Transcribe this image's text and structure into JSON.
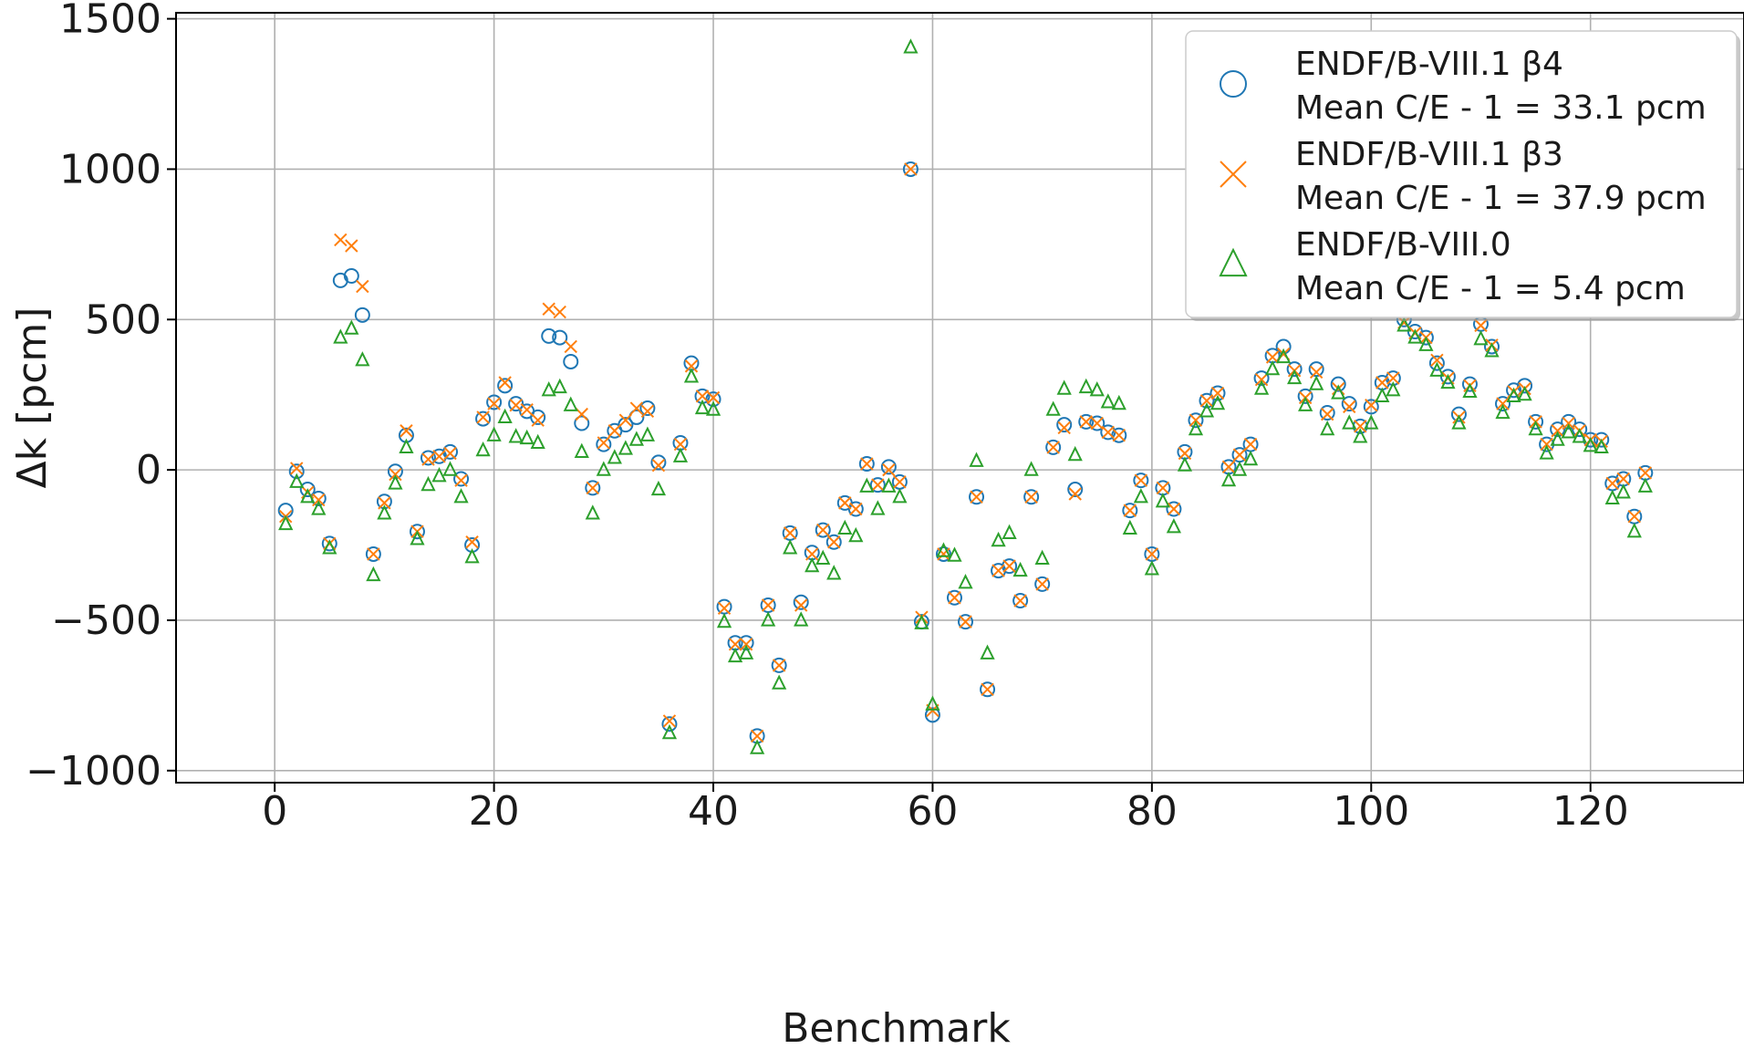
{
  "chart_data": {
    "type": "scatter",
    "title": "",
    "xlabel": "Benchmark",
    "ylabel": "Δk [pcm]",
    "xlim": [
      -9,
      134
    ],
    "ylim": [
      -1040,
      1520
    ],
    "xticks": [
      0,
      20,
      40,
      60,
      80,
      100,
      120
    ],
    "yticks": [
      -1000,
      -500,
      0,
      500,
      1000,
      1500
    ],
    "ytick_labels": [
      "−1000",
      "−500",
      "0",
      "500",
      "1000",
      "1500"
    ],
    "grid": true,
    "legend_position": "top-right",
    "series": [
      {
        "name_line1": "ENDF/B-VIII.1 β4",
        "name_line2": "Mean C/E - 1 = 33.1 pcm",
        "marker": "circle",
        "color": "#1f77b4",
        "x": [
          1,
          2,
          3,
          4,
          5,
          6,
          7,
          8,
          9,
          10,
          11,
          12,
          13,
          14,
          15,
          16,
          17,
          18,
          19,
          20,
          21,
          22,
          23,
          24,
          25,
          26,
          27,
          28,
          29,
          30,
          31,
          32,
          33,
          34,
          35,
          36,
          37,
          38,
          39,
          40,
          41,
          42,
          43,
          44,
          45,
          46,
          47,
          48,
          49,
          50,
          51,
          52,
          53,
          54,
          55,
          56,
          57,
          58,
          59,
          60,
          61,
          62,
          63,
          64,
          65,
          66,
          67,
          68,
          69,
          70,
          71,
          72,
          73,
          74,
          75,
          76,
          77,
          78,
          79,
          80,
          81,
          82,
          83,
          84,
          85,
          86,
          87,
          88,
          89,
          90,
          91,
          92,
          93,
          94,
          95,
          96,
          97,
          98,
          99,
          100,
          101,
          102,
          103,
          104,
          105,
          106,
          107,
          108,
          109,
          110,
          111,
          112,
          113,
          114,
          115,
          116,
          117,
          118,
          119,
          120,
          121,
          122,
          123,
          124,
          125
        ],
        "y": [
          -135,
          -5,
          -65,
          -95,
          -245,
          630,
          645,
          515,
          -280,
          -105,
          -5,
          115,
          -205,
          40,
          45,
          60,
          -30,
          -250,
          170,
          225,
          280,
          220,
          195,
          175,
          445,
          440,
          360,
          155,
          -60,
          85,
          130,
          150,
          175,
          205,
          25,
          -845,
          90,
          355,
          245,
          235,
          -455,
          -575,
          -575,
          -885,
          -450,
          -650,
          -210,
          -440,
          -275,
          -200,
          -240,
          -110,
          -130,
          20,
          -50,
          10,
          -40,
          1000,
          -505,
          -815,
          -280,
          -425,
          -505,
          -90,
          -730,
          -335,
          -320,
          -435,
          -90,
          -380,
          75,
          150,
          -65,
          160,
          155,
          125,
          115,
          -135,
          -35,
          -280,
          -60,
          -130,
          60,
          165,
          230,
          255,
          10,
          50,
          85,
          305,
          380,
          410,
          335,
          245,
          335,
          190,
          285,
          220,
          145,
          210,
          290,
          305,
          500,
          460,
          440,
          355,
          310,
          185,
          285,
          485,
          410,
          220,
          265,
          280,
          160,
          85,
          135,
          160,
          135,
          100,
          100,
          -45,
          -30,
          -155,
          -10
        ]
      },
      {
        "name_line1": "ENDF/B-VIII.1 β3",
        "name_line2": "Mean C/E - 1 = 37.9 pcm",
        "marker": "x",
        "color": "#ff7f0e",
        "x": [
          1,
          2,
          3,
          4,
          5,
          6,
          7,
          8,
          9,
          10,
          11,
          12,
          13,
          14,
          15,
          16,
          17,
          18,
          19,
          20,
          21,
          22,
          23,
          24,
          25,
          26,
          27,
          28,
          29,
          30,
          31,
          32,
          33,
          34,
          35,
          36,
          37,
          38,
          39,
          40,
          41,
          42,
          43,
          44,
          45,
          46,
          47,
          48,
          49,
          50,
          51,
          52,
          53,
          54,
          55,
          56,
          57,
          58,
          59,
          60,
          61,
          62,
          63,
          64,
          65,
          66,
          67,
          68,
          69,
          70,
          71,
          72,
          73,
          74,
          75,
          76,
          77,
          78,
          79,
          80,
          81,
          82,
          83,
          84,
          85,
          86,
          87,
          88,
          89,
          90,
          91,
          92,
          93,
          94,
          95,
          96,
          97,
          98,
          99,
          100,
          101,
          102,
          103,
          104,
          105,
          106,
          107,
          108,
          109,
          110,
          111,
          112,
          113,
          114,
          115,
          116,
          117,
          118,
          119,
          120,
          121,
          122,
          123,
          124,
          125
        ],
        "y": [
          -155,
          5,
          -75,
          -100,
          -245,
          765,
          745,
          610,
          -280,
          -110,
          -15,
          130,
          -205,
          35,
          45,
          55,
          -35,
          -240,
          175,
          220,
          290,
          215,
          200,
          165,
          535,
          525,
          410,
          185,
          -60,
          90,
          130,
          165,
          205,
          195,
          15,
          -835,
          85,
          345,
          245,
          240,
          -460,
          -580,
          -580,
          -885,
          -450,
          -650,
          -210,
          -450,
          -280,
          -200,
          -240,
          -110,
          -130,
          20,
          -50,
          0,
          -40,
          1000,
          -490,
          -800,
          -280,
          -425,
          -505,
          -90,
          -730,
          -335,
          -320,
          -435,
          -90,
          -380,
          75,
          140,
          -80,
          160,
          155,
          125,
          115,
          -135,
          -35,
          -280,
          -60,
          -130,
          55,
          165,
          230,
          255,
          10,
          50,
          85,
          300,
          375,
          385,
          330,
          240,
          325,
          185,
          270,
          210,
          145,
          215,
          290,
          305,
          490,
          455,
          440,
          365,
          305,
          175,
          280,
          480,
          415,
          220,
          260,
          270,
          160,
          85,
          130,
          155,
          130,
          100,
          95,
          -45,
          -30,
          -155,
          -10
        ]
      },
      {
        "name_line1": "ENDF/B-VIII.0",
        "name_line2": "Mean C/E - 1 = 5.4 pcm",
        "marker": "triangle",
        "color": "#2ca02c",
        "x": [
          1,
          2,
          3,
          4,
          5,
          6,
          7,
          8,
          9,
          10,
          11,
          12,
          13,
          14,
          15,
          16,
          17,
          18,
          19,
          20,
          21,
          22,
          23,
          24,
          25,
          26,
          27,
          28,
          29,
          30,
          31,
          32,
          33,
          34,
          35,
          36,
          37,
          38,
          39,
          40,
          41,
          42,
          43,
          44,
          45,
          46,
          47,
          48,
          49,
          50,
          51,
          52,
          53,
          54,
          55,
          56,
          57,
          58,
          59,
          60,
          61,
          62,
          63,
          64,
          65,
          66,
          67,
          68,
          69,
          70,
          71,
          72,
          73,
          74,
          75,
          76,
          77,
          78,
          79,
          80,
          81,
          82,
          83,
          84,
          85,
          86,
          87,
          88,
          89,
          90,
          91,
          92,
          93,
          94,
          95,
          96,
          97,
          98,
          99,
          100,
          101,
          102,
          103,
          104,
          105,
          106,
          107,
          108,
          109,
          110,
          111,
          112,
          113,
          114,
          115,
          116,
          117,
          118,
          119,
          120,
          121,
          122,
          123,
          124,
          125
        ],
        "y": [
          -180,
          -40,
          -90,
          -130,
          -260,
          440,
          470,
          365,
          -350,
          -145,
          -45,
          75,
          -230,
          -50,
          -20,
          0,
          -90,
          -290,
          65,
          115,
          175,
          110,
          105,
          90,
          265,
          275,
          215,
          60,
          -145,
          0,
          40,
          70,
          100,
          115,
          -65,
          -875,
          45,
          310,
          205,
          200,
          -505,
          -620,
          -610,
          -925,
          -500,
          -710,
          -260,
          -500,
          -320,
          -295,
          -345,
          -195,
          -220,
          -55,
          -130,
          -55,
          -90,
          1405,
          -510,
          -780,
          -270,
          -285,
          -375,
          30,
          -610,
          -235,
          -210,
          -335,
          0,
          -295,
          200,
          270,
          50,
          275,
          265,
          225,
          220,
          -195,
          -90,
          -330,
          -105,
          -190,
          15,
          135,
          195,
          220,
          -35,
          0,
          35,
          270,
          335,
          375,
          305,
          215,
          285,
          135,
          255,
          155,
          110,
          155,
          245,
          265,
          480,
          440,
          415,
          330,
          290,
          155,
          260,
          435,
          395,
          190,
          245,
          250,
          135,
          55,
          100,
          125,
          110,
          80,
          75,
          -95,
          -75,
          -205,
          -55
        ]
      }
    ]
  }
}
